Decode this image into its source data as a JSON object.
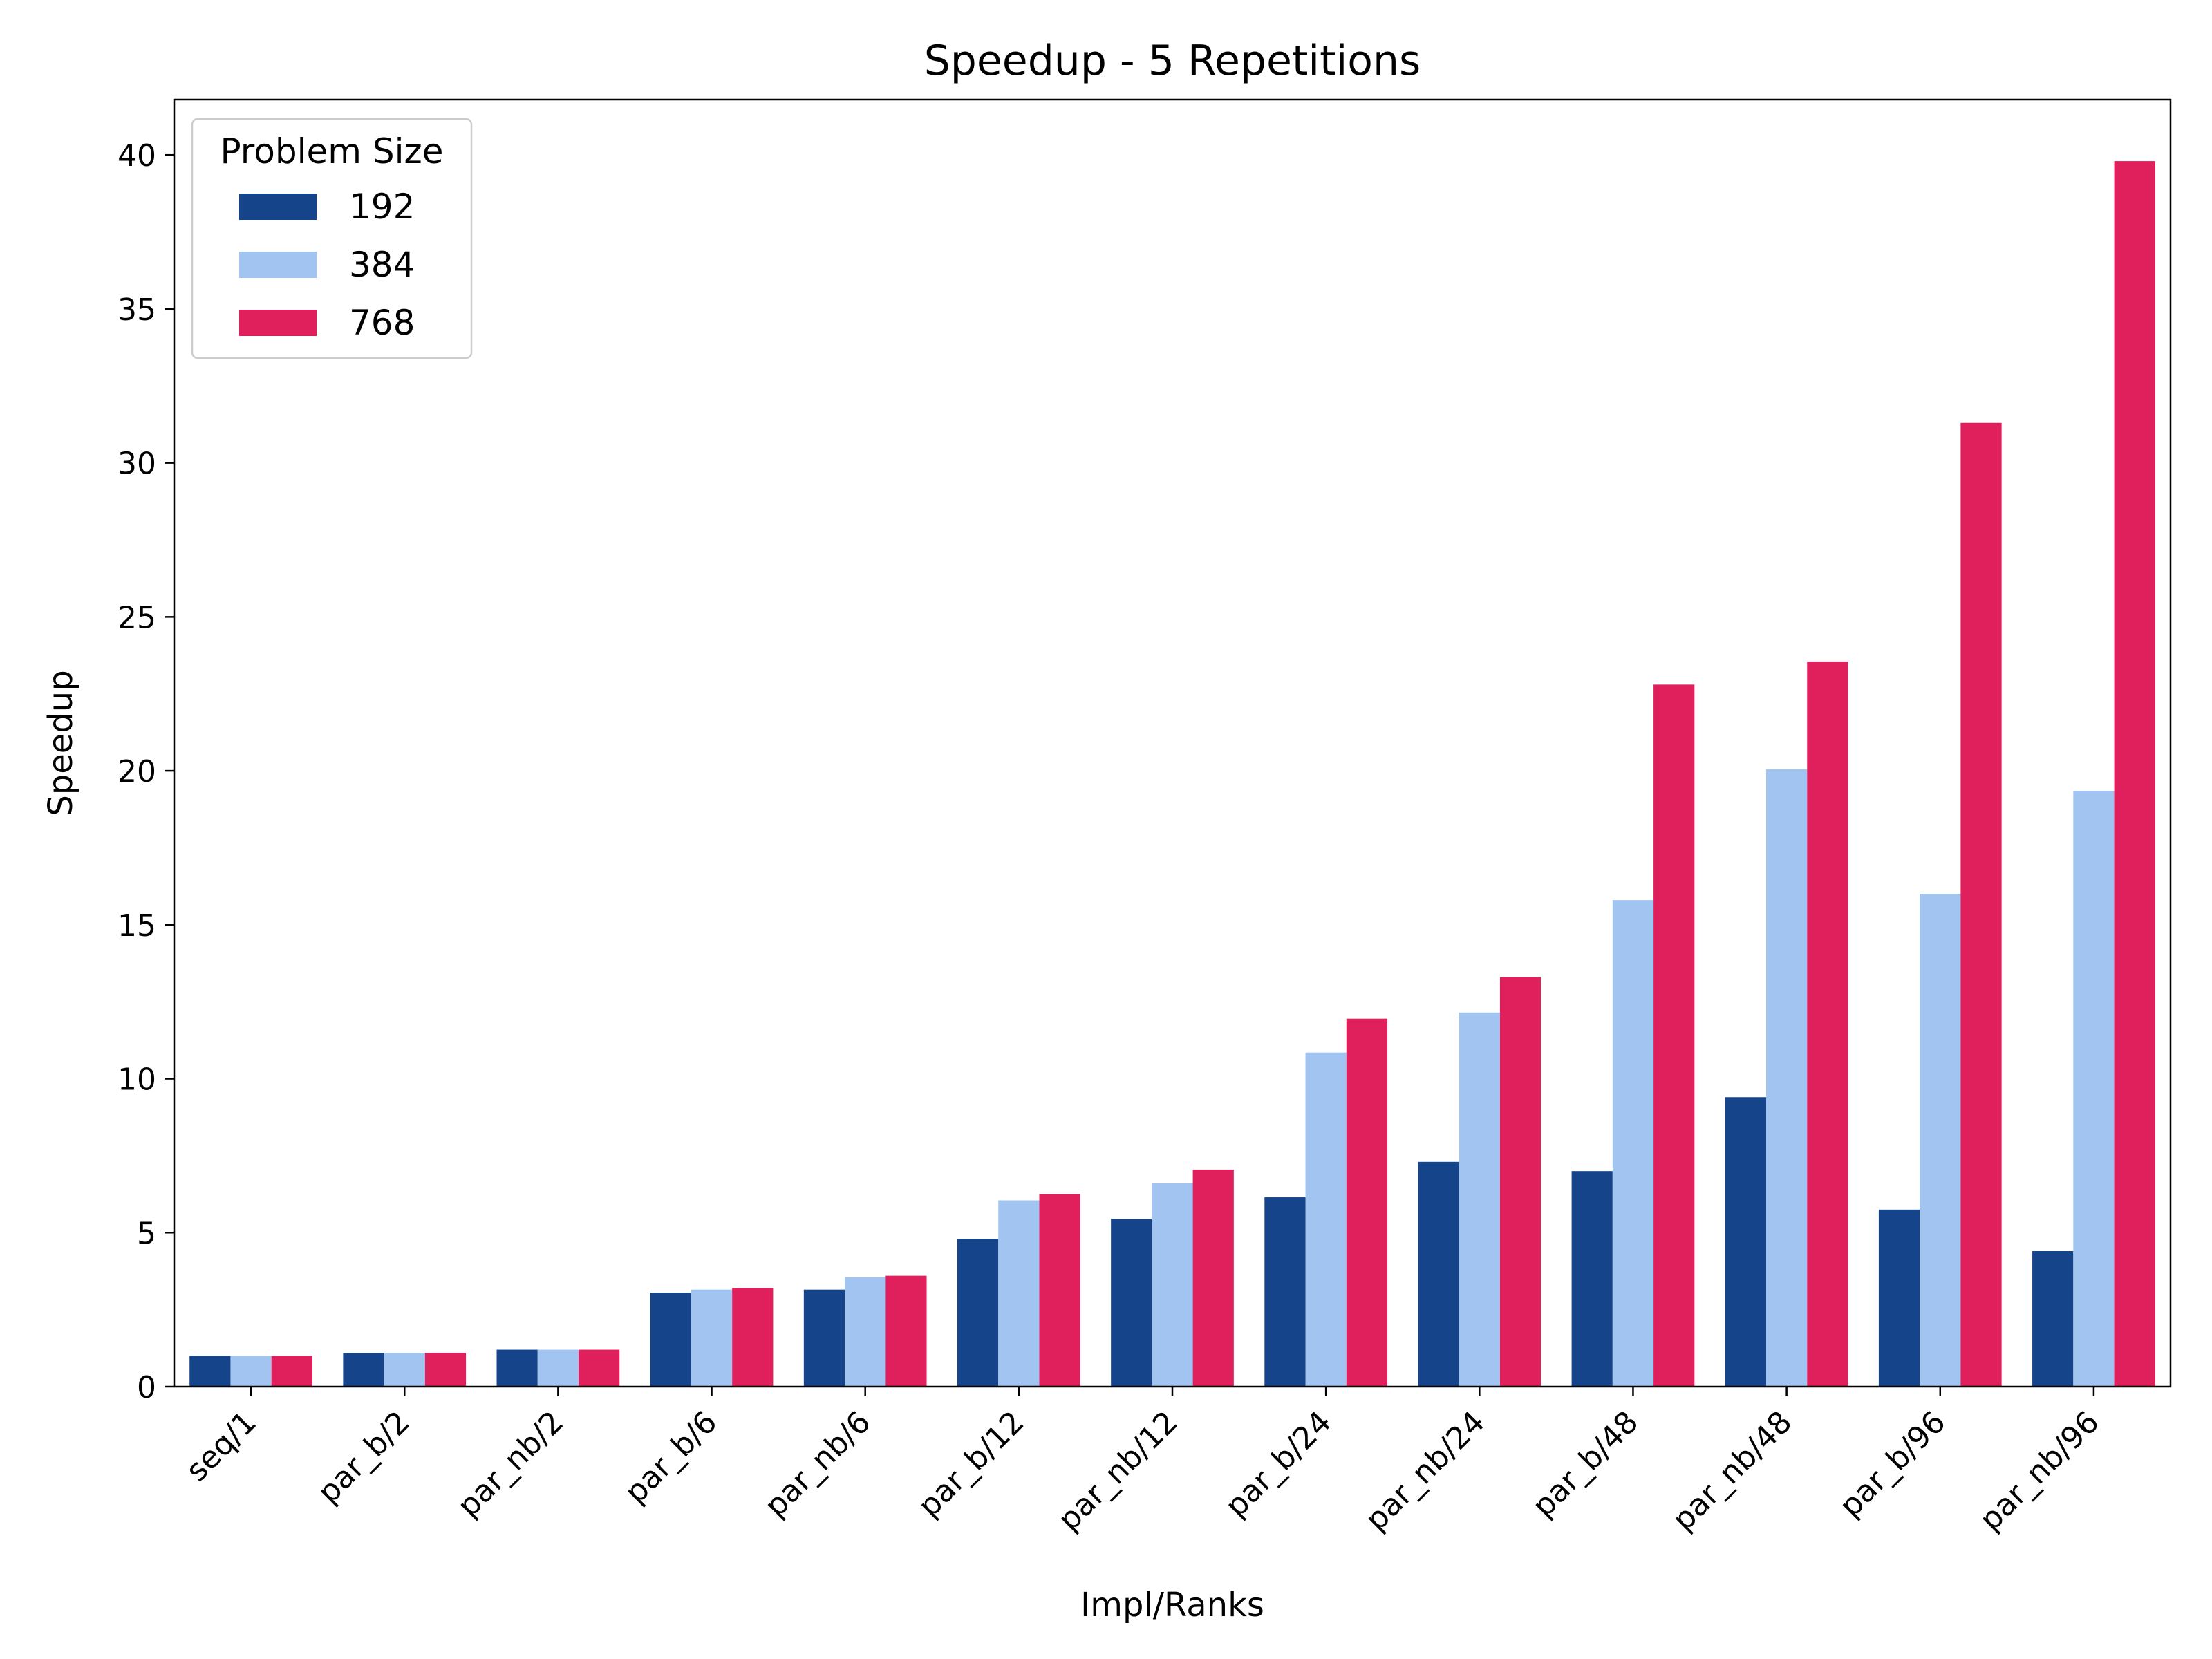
{
  "chart_data": {
    "type": "bar",
    "title": "Speedup - 5 Repetitions",
    "xlabel": "Impl/Ranks",
    "ylabel": "Speedup",
    "ylim": [
      0,
      41.8
    ],
    "yticks": [
      0,
      5,
      10,
      15,
      20,
      25,
      30,
      35,
      40
    ],
    "grid": false,
    "legend": {
      "title": "Problem Size",
      "placement": "top-left"
    },
    "categories": [
      "seq/1",
      "par_b/2",
      "par_nb/2",
      "par_b/6",
      "par_nb/6",
      "par_b/12",
      "par_nb/12",
      "par_b/24",
      "par_nb/24",
      "par_b/48",
      "par_nb/48",
      "par_b/96",
      "par_nb/96"
    ],
    "series": [
      {
        "name": "192",
        "color": "#15448a",
        "values": [
          1.0,
          1.1,
          1.2,
          3.05,
          3.15,
          4.8,
          5.45,
          6.15,
          7.3,
          7.0,
          9.4,
          5.75,
          4.4
        ]
      },
      {
        "name": "384",
        "color": "#a2c4f0",
        "values": [
          1.0,
          1.1,
          1.2,
          3.15,
          3.55,
          6.05,
          6.6,
          10.85,
          12.15,
          15.8,
          20.05,
          16.0,
          19.35
        ]
      },
      {
        "name": "768",
        "color": "#e0205c",
        "values": [
          1.0,
          1.1,
          1.2,
          3.2,
          3.6,
          6.25,
          7.05,
          11.95,
          13.3,
          22.8,
          23.55,
          31.3,
          39.8
        ]
      }
    ]
  }
}
